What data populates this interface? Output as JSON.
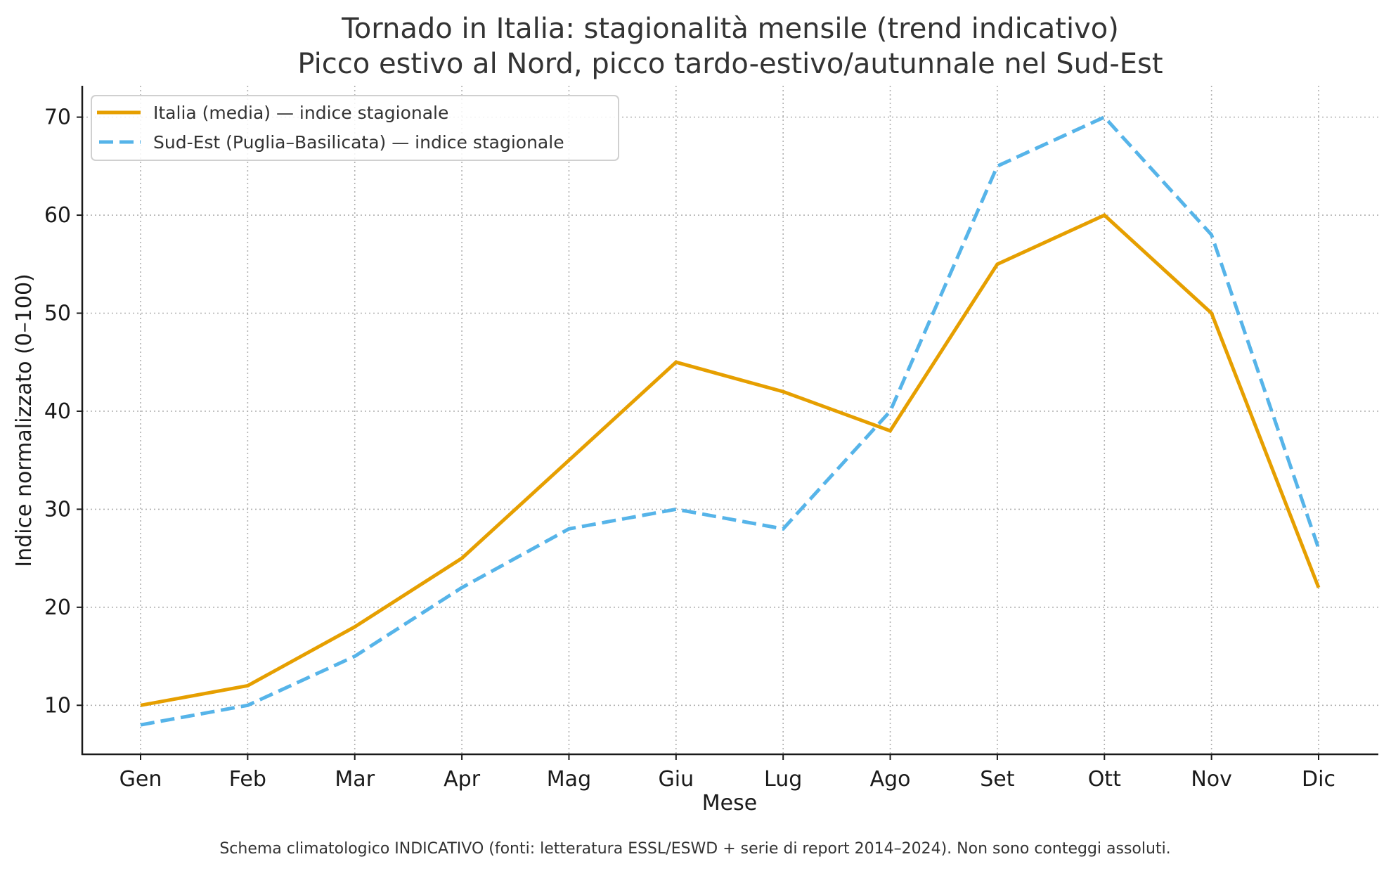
{
  "chart_data": {
    "type": "line",
    "title": "Tornado in Italia: stagionalità mensile (trend indicativo)",
    "subtitle": "Picco estivo al Nord, picco tardo-estivo/autunnale nel Sud-Est",
    "xlabel": "Mese",
    "ylabel": "Indice normalizzato (0–100)",
    "categories": [
      "Gen",
      "Feb",
      "Mar",
      "Apr",
      "Mag",
      "Giu",
      "Lug",
      "Ago",
      "Set",
      "Ott",
      "Nov",
      "Dic"
    ],
    "yticks": [
      10,
      20,
      30,
      40,
      50,
      60,
      70
    ],
    "ylim": [
      5,
      73.2
    ],
    "grid": true,
    "legend_position": "top-left",
    "series": [
      {
        "name": "Italia (media) — indice stagionale",
        "style": "solid",
        "color": "#E69F00",
        "values": [
          10,
          12,
          18,
          25,
          35,
          45,
          42,
          38,
          55,
          60,
          50,
          22
        ]
      },
      {
        "name": "Sud-Est (Puglia–Basilicata) — indice stagionale",
        "style": "dashed",
        "color": "#56B4E9",
        "values": [
          8,
          10,
          15,
          22,
          28,
          30,
          28,
          40,
          65,
          70,
          58,
          26
        ]
      }
    ],
    "footnote": "Schema climatologico INDICATIVO (fonti: letteratura ESSL/ESWD + serie di report 2014–2024). Non sono conteggi assoluti."
  }
}
